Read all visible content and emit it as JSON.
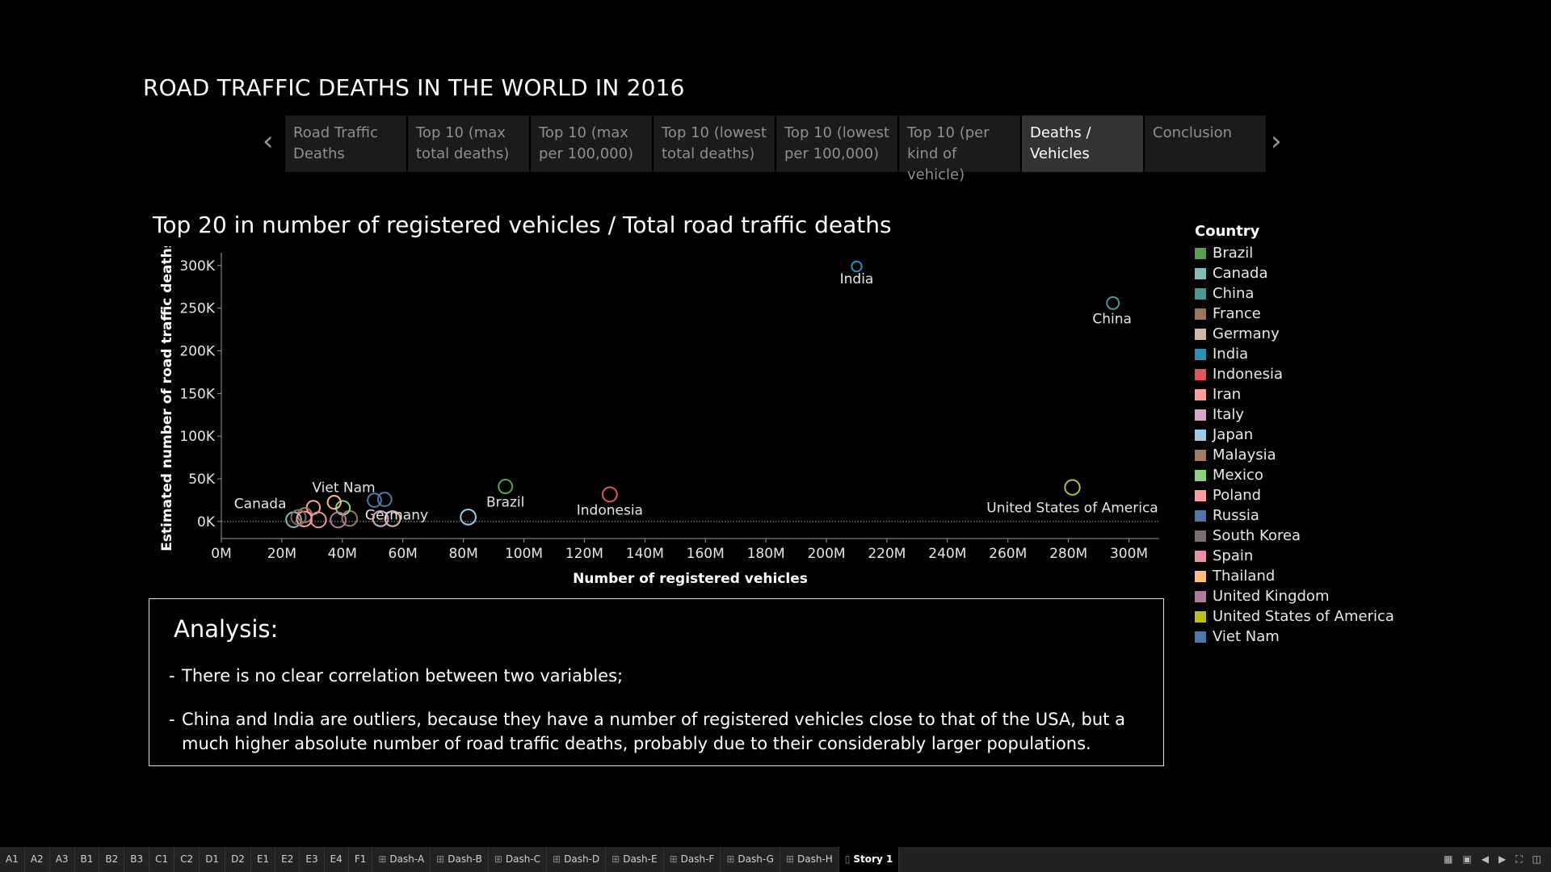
{
  "story": {
    "title": "ROAD TRAFFIC DEATHS IN THE WORLD IN 2016",
    "prev_icon": "chevron-left-icon",
    "next_icon": "chevron-right-icon",
    "tabs": [
      {
        "label": "Road Traffic\nDeaths",
        "active": false
      },
      {
        "label": "Top 10 (max\ntotal deaths)",
        "active": false
      },
      {
        "label": "Top 10 (max\nper 100,000)",
        "active": false
      },
      {
        "label": "Top 10 (lowest\ntotal deaths)",
        "active": false
      },
      {
        "label": "Top 10 (lowest\nper 100,000)",
        "active": false
      },
      {
        "label": "Top 10 (per\nkind of vehicle)",
        "active": false
      },
      {
        "label": "Deaths /\nVehicles",
        "active": true
      },
      {
        "label": "Conclusion",
        "active": false
      }
    ]
  },
  "chart_data": {
    "type": "scatter",
    "title": "Top 20 in number of registered vehicles / Total road traffic deaths",
    "xlabel": "Number of registered vehicles",
    "ylabel": "Estimated number of road traffic deaths",
    "xlim": [
      0,
      310000000
    ],
    "ylim": [
      -20000,
      315000
    ],
    "x_ticks": [
      0,
      20000000,
      40000000,
      60000000,
      80000000,
      100000000,
      120000000,
      140000000,
      160000000,
      180000000,
      200000000,
      220000000,
      240000000,
      260000000,
      280000000,
      300000000
    ],
    "x_tick_labels": [
      "0M",
      "20M",
      "40M",
      "60M",
      "80M",
      "100M",
      "120M",
      "140M",
      "160M",
      "180M",
      "200M",
      "220M",
      "240M",
      "260M",
      "280M",
      "300M"
    ],
    "y_ticks": [
      0,
      50000,
      100000,
      150000,
      200000,
      250000,
      300000
    ],
    "y_tick_labels": [
      "0K",
      "50K",
      "100K",
      "150K",
      "200K",
      "250K",
      "300K"
    ],
    "grid": false,
    "zero_line": true,
    "legend_title": "Country",
    "legend_placement": "right",
    "points": [
      {
        "country": "Brazil",
        "x": 93900000,
        "y": 41000,
        "color": "#59a14f",
        "label": "Brazil"
      },
      {
        "country": "Canada",
        "x": 23900000,
        "y": 2100,
        "color": "#86bcb6",
        "label": "Canada"
      },
      {
        "country": "China",
        "x": 294700000,
        "y": 256000,
        "color": "#499894",
        "label": "China"
      },
      {
        "country": "France",
        "x": 42400000,
        "y": 3600,
        "color": "#9d7660",
        "label": ""
      },
      {
        "country": "Germany",
        "x": 56600000,
        "y": 3300,
        "color": "#d7b5a6",
        "label": "Germany"
      },
      {
        "country": "India",
        "x": 210000000,
        "y": 299000,
        "color": "#2f8fb0",
        "label": "India"
      },
      {
        "country": "Indonesia",
        "x": 128400000,
        "y": 31700,
        "color": "#e15759",
        "label": "Indonesia"
      },
      {
        "country": "Iran",
        "x": 30400000,
        "y": 16400,
        "color": "#ff9d9a",
        "label": ""
      },
      {
        "country": "Italy",
        "x": 52600000,
        "y": 3300,
        "color": "#d4a6c8",
        "label": ""
      },
      {
        "country": "Japan",
        "x": 81600000,
        "y": 5200,
        "color": "#a0cbe8",
        "label": ""
      },
      {
        "country": "Malaysia",
        "x": 27600000,
        "y": 7400,
        "color": "#a17c63",
        "label": ""
      },
      {
        "country": "Mexico",
        "x": 40200000,
        "y": 16000,
        "color": "#8cd17d",
        "label": ""
      },
      {
        "country": "Poland",
        "x": 27400000,
        "y": 3000,
        "color": "#ff9d9a",
        "label": ""
      },
      {
        "country": "Russia",
        "x": 54000000,
        "y": 25900,
        "color": "#4e79a7",
        "label": ""
      },
      {
        "country": "South Korea",
        "x": 25500000,
        "y": 4900,
        "color": "#79706e",
        "label": ""
      },
      {
        "country": "Spain",
        "x": 32100000,
        "y": 1900,
        "color": "#e891a3",
        "label": ""
      },
      {
        "country": "Thailand",
        "x": 37300000,
        "y": 22500,
        "color": "#ffbe7d",
        "label": ""
      },
      {
        "country": "United Kingdom",
        "x": 38600000,
        "y": 1800,
        "color": "#b07aa1",
        "label": ""
      },
      {
        "country": "United States of America",
        "x": 281300000,
        "y": 39900,
        "color": "#bcbd22",
        "label": "United States of America"
      },
      {
        "country": "Viet Nam",
        "x": 50600000,
        "y": 24900,
        "color": "#4e79a7",
        "label": "Viet Nam"
      }
    ]
  },
  "legend": {
    "title": "Country",
    "items": [
      {
        "label": "Brazil",
        "color": "#59a14f"
      },
      {
        "label": "Canada",
        "color": "#86bcb6"
      },
      {
        "label": "China",
        "color": "#499894"
      },
      {
        "label": "France",
        "color": "#9d7660"
      },
      {
        "label": "Germany",
        "color": "#d7b5a6"
      },
      {
        "label": "India",
        "color": "#2f8fb0"
      },
      {
        "label": "Indonesia",
        "color": "#e15759"
      },
      {
        "label": "Iran",
        "color": "#ff9d9a"
      },
      {
        "label": "Italy",
        "color": "#d4a6c8"
      },
      {
        "label": "Japan",
        "color": "#a0cbe8"
      },
      {
        "label": "Malaysia",
        "color": "#a17c63"
      },
      {
        "label": "Mexico",
        "color": "#8cd17d"
      },
      {
        "label": "Poland",
        "color": "#ff9d9a"
      },
      {
        "label": "Russia",
        "color": "#4e79a7"
      },
      {
        "label": "South Korea",
        "color": "#79706e"
      },
      {
        "label": "Spain",
        "color": "#e891a3"
      },
      {
        "label": "Thailand",
        "color": "#ffbe7d"
      },
      {
        "label": "United Kingdom",
        "color": "#b07aa1"
      },
      {
        "label": "United States of America",
        "color": "#bcbd22"
      },
      {
        "label": "Viet Nam",
        "color": "#4e79a7"
      }
    ]
  },
  "analysis": {
    "heading": "Analysis:",
    "points": [
      "There is no clear correlation between two variables;",
      "China and India are outliers, because they have a number of registered vehicles close to that of the USA, but a much higher absolute number of road traffic deaths, probably due to their considerably larger populations."
    ]
  },
  "bottom_bar": {
    "sheets": [
      {
        "label": "A1",
        "type": "sheet"
      },
      {
        "label": "A2",
        "type": "sheet"
      },
      {
        "label": "A3",
        "type": "sheet"
      },
      {
        "label": "B1",
        "type": "sheet"
      },
      {
        "label": "B2",
        "type": "sheet"
      },
      {
        "label": "B3",
        "type": "sheet"
      },
      {
        "label": "C1",
        "type": "sheet"
      },
      {
        "label": "C2",
        "type": "sheet"
      },
      {
        "label": "D1",
        "type": "sheet"
      },
      {
        "label": "D2",
        "type": "sheet"
      },
      {
        "label": "E1",
        "type": "sheet"
      },
      {
        "label": "E2",
        "type": "sheet"
      },
      {
        "label": "E3",
        "type": "sheet"
      },
      {
        "label": "E4",
        "type": "sheet"
      },
      {
        "label": "F1",
        "type": "sheet"
      },
      {
        "label": "Dash-A",
        "type": "dashboard"
      },
      {
        "label": "Dash-B",
        "type": "dashboard"
      },
      {
        "label": "Dash-C",
        "type": "dashboard"
      },
      {
        "label": "Dash-D",
        "type": "dashboard"
      },
      {
        "label": "Dash-E",
        "type": "dashboard"
      },
      {
        "label": "Dash-F",
        "type": "dashboard"
      },
      {
        "label": "Dash-G",
        "type": "dashboard"
      },
      {
        "label": "Dash-H",
        "type": "dashboard"
      },
      {
        "label": "Story 1",
        "type": "story",
        "active": true
      }
    ],
    "controls": [
      "sheet-sorter-icon",
      "filmstrip-icon",
      "previous-sheet-icon",
      "next-sheet-icon",
      "fullscreen-icon",
      "presentation-icon"
    ]
  }
}
